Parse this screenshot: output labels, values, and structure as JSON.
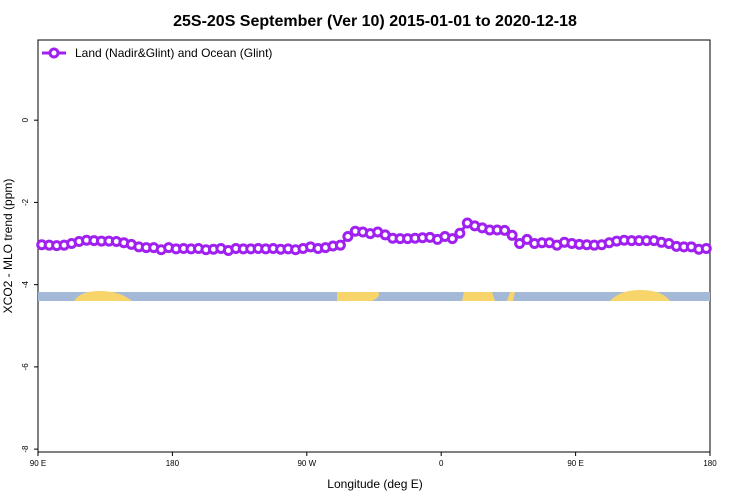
{
  "chart_data": {
    "type": "line",
    "title": "25S-20S September (Ver 10)   2015-01-01 to 2020-12-18",
    "xlabel": "Longitude (deg E)",
    "ylabel": "XCO2 - MLO trend (ppm)",
    "x": [
      92.5,
      97.5,
      102.5,
      107.5,
      112.5,
      117.5,
      122.5,
      127.5,
      132.5,
      137.5,
      142.5,
      147.5,
      152.5,
      157.5,
      162.5,
      167.5,
      172.5,
      177.5,
      182.5,
      187.5,
      192.5,
      197.5,
      202.5,
      207.5,
      212.5,
      217.5,
      222.5,
      227.5,
      232.5,
      237.5,
      242.5,
      247.5,
      252.5,
      257.5,
      262.5,
      267.5,
      272.5,
      277.5,
      282.5,
      287.5,
      292.5,
      297.5,
      302.5,
      307.5,
      312.5,
      317.5,
      322.5,
      327.5,
      332.5,
      337.5,
      342.5,
      347.5,
      352.5,
      357.5,
      362.5,
      367.5,
      372.5,
      377.5,
      382.5,
      387.5,
      392.5,
      397.5,
      402.5,
      407.5,
      412.5,
      417.5,
      422.5,
      427.5,
      432.5,
      437.5,
      442.5,
      447.5,
      452.5,
      457.5,
      462.5,
      467.5,
      472.5,
      477.5,
      482.5,
      487.5,
      492.5,
      497.5,
      502.5,
      507.5,
      512.5,
      517.5,
      522.5,
      527.5,
      532.5,
      537.5
    ],
    "series": [
      {
        "name": "Land (Nadir&Glint) and Ocean (Glint)",
        "color": "#a020f0",
        "values": [
          -3.03,
          -3.04,
          -3.05,
          -3.04,
          -3.0,
          -2.95,
          -2.92,
          -2.93,
          -2.94,
          -2.94,
          -2.95,
          -2.98,
          -3.02,
          -3.08,
          -3.1,
          -3.1,
          -3.15,
          -3.1,
          -3.13,
          -3.12,
          -3.13,
          -3.12,
          -3.15,
          -3.14,
          -3.12,
          -3.17,
          -3.12,
          -3.13,
          -3.13,
          -3.12,
          -3.13,
          -3.12,
          -3.14,
          -3.13,
          -3.15,
          -3.12,
          -3.08,
          -3.12,
          -3.1,
          -3.06,
          -3.04,
          -2.83,
          -2.7,
          -2.72,
          -2.76,
          -2.72,
          -2.79,
          -2.87,
          -2.88,
          -2.88,
          -2.87,
          -2.86,
          -2.85,
          -2.9,
          -2.83,
          -2.88,
          -2.75,
          -2.5,
          -2.57,
          -2.62,
          -2.67,
          -2.67,
          -2.68,
          -2.8,
          -3.0,
          -2.9,
          -3.0,
          -2.98,
          -2.98,
          -3.04,
          -2.97,
          -3.0,
          -3.02,
          -3.03,
          -3.04,
          -3.03,
          -2.98,
          -2.94,
          -2.92,
          -2.93,
          -2.93,
          -2.93,
          -2.93,
          -2.97,
          -3.0,
          -3.07,
          -3.08,
          -3.08,
          -3.14,
          -3.12
        ]
      }
    ],
    "xlim": [
      90,
      540
    ],
    "xticks": [
      {
        "value": 90,
        "label": "90 E"
      },
      {
        "value": 180,
        "label": "180"
      },
      {
        "value": 270,
        "label": "90 W"
      },
      {
        "value": 360,
        "label": "0"
      },
      {
        "value": 450,
        "label": "90 E"
      },
      {
        "value": 540,
        "label": "180"
      }
    ],
    "ylim": [
      -8.07,
      1.95
    ],
    "yticks": [
      -8,
      -6,
      -4,
      -2,
      0
    ],
    "legend": "top-left"
  }
}
